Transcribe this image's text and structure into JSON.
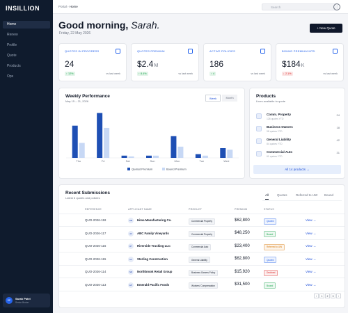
{
  "sidebar": {
    "logo": "INSILLION",
    "nav": [
      "Home",
      "Renew",
      "Profile",
      "Quote",
      "Products",
      "Ops"
    ],
    "user": {
      "initials": "SP",
      "name": "Sarah Patel",
      "role": "Senior Broker"
    }
  },
  "topbar": {
    "breadcrumb_parent": "Portal",
    "breadcrumb_separator": "›",
    "breadcrumb_current": "Home",
    "search": "Search"
  },
  "header": {
    "greeting": "Good morning,",
    "name": "Sarah.",
    "date": "Friday, 22 May 2026",
    "button": "+ New Quote"
  },
  "kpis": [
    {
      "label": "QUOTES IN PROGRESS",
      "value": "24",
      "delta": "↑ 12%",
      "delta_color": "#16a34a",
      "note": "vs last week"
    },
    {
      "label": "QUOTES PREMIUM",
      "value": "$2.4",
      "unit": "M",
      "delta": "↑ 8.4%",
      "delta_color": "#16a34a",
      "note": "vs last week"
    },
    {
      "label": "ACTIVE POLICIES",
      "value": "186",
      "delta": "↑ 4",
      "delta_color": "#16a34a",
      "note": "vs last week"
    },
    {
      "label": "BOUND PREMIUM MTD",
      "value": "$184",
      "unit": "K",
      "delta": "↓ 2.1%",
      "delta_color": "#dc2626",
      "note": "vs last week"
    }
  ],
  "chart_data": {
    "type": "bar",
    "title": "Weekly Performance",
    "subtitle": "May 15 – 21, 2026",
    "toggle": [
      "Week",
      "Month"
    ],
    "categories": [
      "Thu",
      "Fri",
      "Sat",
      "Sun",
      "Mon",
      "Tue",
      "Wed"
    ],
    "series": [
      {
        "name": "Quoted Premium",
        "color": "#1e4fb4",
        "values": [
          43,
          60,
          3,
          3,
          29,
          5,
          13
        ]
      },
      {
        "name": "Bound Premium",
        "color": "#c7d8f5",
        "values": [
          20,
          40,
          2,
          3,
          15,
          3,
          11
        ]
      }
    ],
    "ylim": [
      0,
      65
    ]
  },
  "products": {
    "title": "Products",
    "subtitle": "Lines available to quote",
    "items": [
      {
        "name": "Comm. Property",
        "meta": "126 quotes YTD",
        "count": "24"
      },
      {
        "name": "Business Owners",
        "meta": "98 quotes YTD",
        "count": "18"
      },
      {
        "name": "General Liability",
        "meta": "84 quotes YTD",
        "count": "42"
      },
      {
        "name": "Commercial Auto",
        "meta": "61 quotes YTD",
        "count": "31"
      }
    ],
    "button": "All 14 products →"
  },
  "submissions": {
    "title": "Recent Submissions",
    "subtitle": "Latest 6 quotes and policies",
    "tabs": [
      "All",
      "Quotes",
      "Referred to UW",
      "Bound"
    ],
    "columns": [
      "REFERENCE",
      "APPLICANT NAME",
      "PRODUCT",
      "PREMIUM",
      "STATUS"
    ],
    "rows": [
      {
        "reference": "QUO-2026-118",
        "initials": "HM",
        "applicant": "Hima Manufacturing Co.",
        "product": "Commercial Property",
        "premium": "$62,800",
        "status": "Quoted",
        "status_color": "#2563eb",
        "action": "View →"
      },
      {
        "reference": "QUO-2026-117",
        "initials": "AV",
        "applicant": "ABC Family Vineyards",
        "product": "Commercial Property",
        "premium": "$48,250",
        "status": "Bound",
        "status_color": "#16a34a",
        "action": "View →"
      },
      {
        "reference": "QUO-2026-116",
        "initials": "RT",
        "applicant": "Riverside Trucking LLC",
        "product": "Commercial Auto",
        "premium": "$23,400",
        "status": "Referred to UW",
        "status_color": "#d97706",
        "action": "View →"
      },
      {
        "reference": "QUO-2026-115",
        "initials": "SC",
        "applicant": "Sterling Construction",
        "product": "General Liability",
        "premium": "$62,800",
        "status": "Quoted",
        "status_color": "#2563eb",
        "action": "View →"
      },
      {
        "reference": "QUO-2026-114",
        "initials": "NR",
        "applicant": "Northbrook Retail Group",
        "product": "Business Owners Policy",
        "premium": "$15,920",
        "status": "Declined",
        "status_color": "#dc2626",
        "action": "View →"
      },
      {
        "reference": "QUO-2026-113",
        "initials": "EP",
        "applicant": "Emerald Pacific Foods",
        "product": "Workers' Compensation",
        "premium": "$31,500",
        "status": "Bound",
        "status_color": "#16a34a",
        "action": "View →"
      }
    ],
    "pagination": [
      "‹",
      "1",
      "2",
      "3",
      "›"
    ]
  }
}
